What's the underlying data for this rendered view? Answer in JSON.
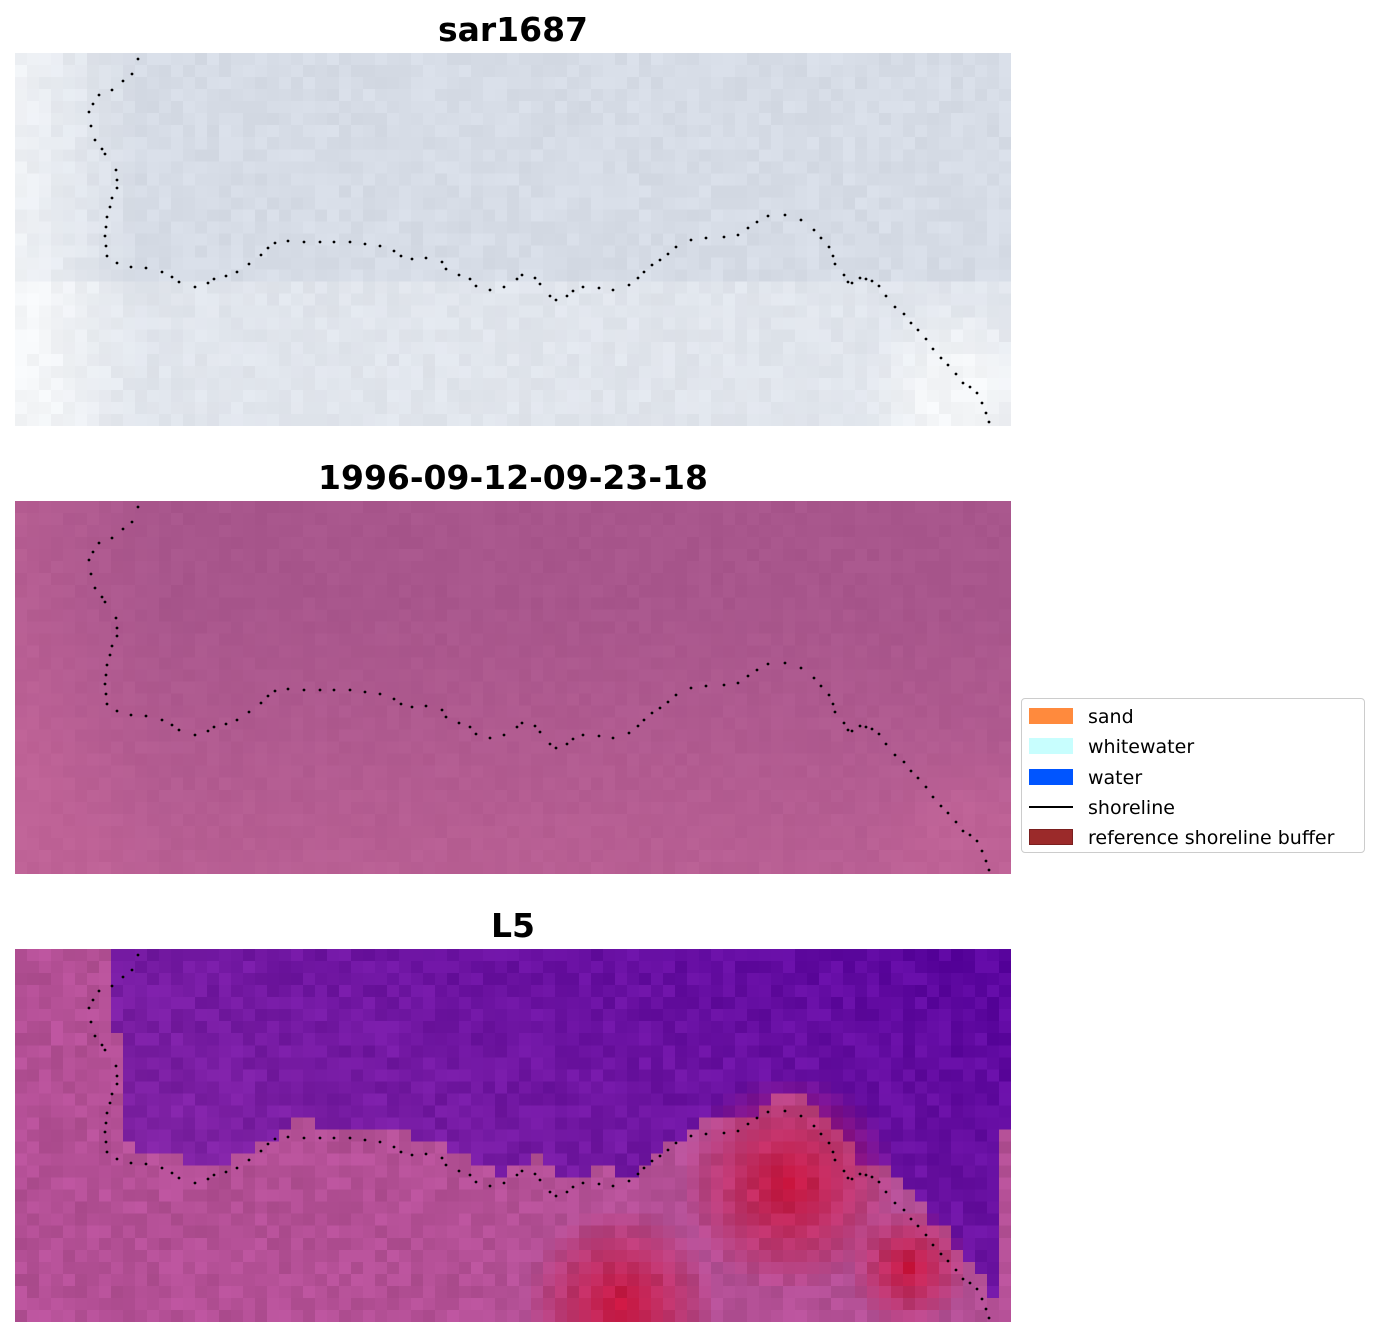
{
  "panels": [
    {
      "title": "sar1687",
      "style": "sar"
    },
    {
      "title": "1996-09-12-09-23-18",
      "style": "magenta"
    },
    {
      "title": "L5",
      "style": "classified"
    }
  ],
  "legend": {
    "items": [
      {
        "label": "sand",
        "color": "#ff8a3d",
        "kind": "patch"
      },
      {
        "label": "whitewater",
        "color": "#c8fefe",
        "kind": "patch"
      },
      {
        "label": "water",
        "color": "#0055ff",
        "kind": "patch"
      },
      {
        "label": "shoreline",
        "color": "#000000",
        "kind": "line"
      },
      {
        "label": "reference shoreline buffer",
        "color": "#9b2a2a",
        "kind": "patch"
      }
    ]
  },
  "shoreline": {
    "color": "#000000",
    "points": [
      [
        123,
        6
      ],
      [
        117,
        21
      ],
      [
        108,
        28
      ],
      [
        97,
        37
      ],
      [
        84,
        42
      ],
      [
        78,
        51
      ],
      [
        74,
        59
      ],
      [
        76,
        73
      ],
      [
        80,
        87
      ],
      [
        87,
        96
      ],
      [
        90,
        101
      ],
      [
        101,
        117
      ],
      [
        102,
        127
      ],
      [
        102,
        135
      ],
      [
        97,
        145
      ],
      [
        95,
        154
      ],
      [
        92,
        164
      ],
      [
        91,
        174
      ],
      [
        90,
        183
      ],
      [
        91,
        193
      ],
      [
        92,
        203
      ],
      [
        102,
        210
      ],
      [
        116,
        214
      ],
      [
        131,
        215
      ],
      [
        147,
        219
      ],
      [
        157,
        224
      ],
      [
        164,
        229
      ],
      [
        180,
        234
      ],
      [
        193,
        230
      ],
      [
        199,
        226
      ],
      [
        211,
        223
      ],
      [
        222,
        219
      ],
      [
        234,
        211
      ],
      [
        246,
        202
      ],
      [
        253,
        195
      ],
      [
        260,
        190
      ],
      [
        273,
        188
      ],
      [
        289,
        189
      ],
      [
        305,
        189
      ],
      [
        319,
        189
      ],
      [
        335,
        189
      ],
      [
        350,
        191
      ],
      [
        365,
        193
      ],
      [
        379,
        198
      ],
      [
        386,
        203
      ],
      [
        397,
        206
      ],
      [
        411,
        205
      ],
      [
        427,
        209
      ],
      [
        431,
        216
      ],
      [
        444,
        222
      ],
      [
        455,
        226
      ],
      [
        461,
        233
      ],
      [
        475,
        237
      ],
      [
        489,
        234
      ],
      [
        502,
        226
      ],
      [
        507,
        222
      ],
      [
        520,
        225
      ],
      [
        525,
        231
      ],
      [
        535,
        243
      ],
      [
        541,
        247
      ],
      [
        552,
        243
      ],
      [
        558,
        238
      ],
      [
        568,
        234
      ],
      [
        584,
        235
      ],
      [
        598,
        237
      ],
      [
        614,
        232
      ],
      [
        623,
        225
      ],
      [
        629,
        219
      ],
      [
        637,
        212
      ],
      [
        645,
        207
      ],
      [
        653,
        201
      ],
      [
        661,
        194
      ],
      [
        676,
        187
      ],
      [
        691,
        185
      ],
      [
        709,
        184
      ],
      [
        723,
        182
      ],
      [
        733,
        175
      ],
      [
        742,
        169
      ],
      [
        753,
        163
      ],
      [
        770,
        162
      ],
      [
        786,
        167
      ],
      [
        799,
        177
      ],
      [
        806,
        185
      ],
      [
        814,
        194
      ],
      [
        818,
        203
      ],
      [
        820,
        211
      ],
      [
        829,
        222
      ],
      [
        833,
        229
      ],
      [
        837,
        230
      ],
      [
        845,
        225
      ],
      [
        851,
        226
      ],
      [
        857,
        228
      ],
      [
        864,
        233
      ],
      [
        871,
        243
      ],
      [
        880,
        254
      ],
      [
        889,
        261
      ],
      [
        896,
        270
      ],
      [
        903,
        277
      ],
      [
        911,
        286
      ],
      [
        918,
        296
      ],
      [
        926,
        305
      ],
      [
        933,
        312
      ],
      [
        941,
        321
      ],
      [
        948,
        330
      ],
      [
        955,
        334
      ],
      [
        962,
        340
      ],
      [
        967,
        350
      ],
      [
        971,
        360
      ],
      [
        974,
        369
      ],
      [
        977,
        375
      ]
    ]
  }
}
